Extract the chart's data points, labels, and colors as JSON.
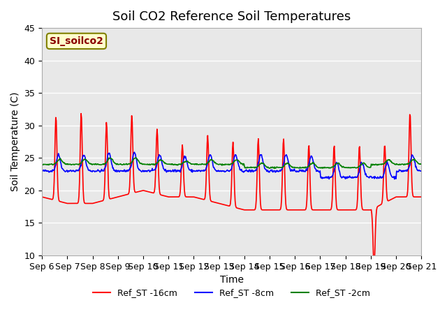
{
  "title": "Soil CO2 Reference Soil Temperatures",
  "xlabel": "Time",
  "ylabel": "Soil Temperature (C)",
  "ylim": [
    10,
    45
  ],
  "yticks": [
    10,
    15,
    20,
    25,
    30,
    35,
    40,
    45
  ],
  "xtick_labels": [
    "Sep 6",
    "Sep 7",
    "Sep 8",
    "Sep 9",
    "Sep 10",
    "Sep 11",
    "Sep 12",
    "Sep 13",
    "Sep 14",
    "Sep 15",
    "Sep 16",
    "Sep 17",
    "Sep 18",
    "Sep 19",
    "Sep 20",
    "Sep 21"
  ],
  "legend_label": "SI_soilco2",
  "series_labels": [
    "Ref_ST -16cm",
    "Ref_ST -8cm",
    "Ref_ST -2cm"
  ],
  "series_colors": [
    "red",
    "blue",
    "green"
  ],
  "plot_bg_color": "#e8e8e8",
  "title_fontsize": 13,
  "axis_label_fontsize": 10,
  "tick_fontsize": 9
}
